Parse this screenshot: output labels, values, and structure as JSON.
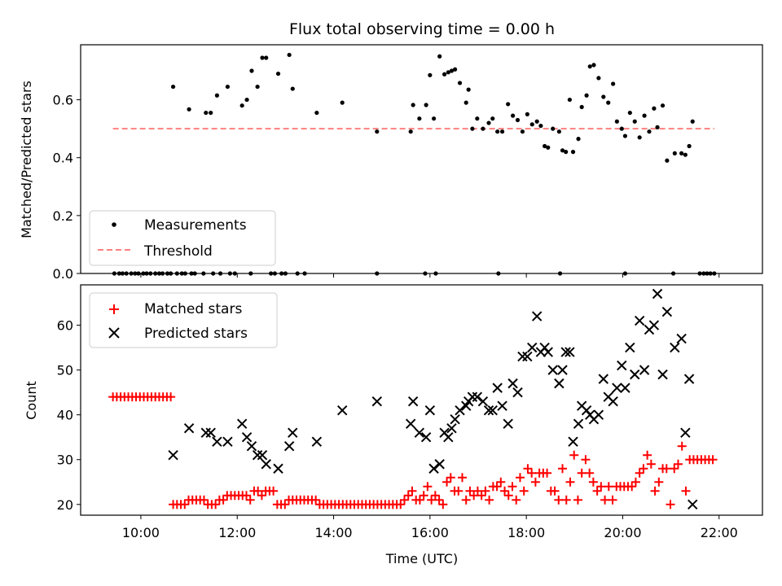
{
  "chart_data": [
    {
      "type": "scatter",
      "title": "Flux total observing time = 0.00 h",
      "xlabel": "",
      "ylabel": "Matched/Predicted stars",
      "xlim": [
        8.75,
        22.9
      ],
      "ylim": [
        0,
        0.79
      ],
      "yticks": [
        "0.0",
        "0.2",
        "0.4",
        "0.6"
      ],
      "ytick_values": [
        0.0,
        0.2,
        0.4,
        0.6
      ],
      "legend": {
        "placement": "lower-left",
        "entries": [
          "Measurements",
          "Threshold"
        ]
      },
      "colors": {
        "measurements": "#000000",
        "threshold": "#ff8080"
      },
      "threshold": {
        "name": "Threshold",
        "value": 0.5,
        "x_start": 9.42,
        "x_end": 21.9
      },
      "series": [
        {
          "name": "Measurements",
          "x": [
            10.67,
            11.0,
            11.35,
            11.45,
            11.58,
            11.8,
            12.1,
            12.2,
            12.3,
            12.42,
            12.52,
            12.6,
            12.85,
            13.08,
            13.15,
            13.65,
            14.18,
            14.9,
            15.6,
            15.65,
            15.78,
            15.92,
            16.0,
            16.08,
            16.2,
            16.3,
            16.38,
            16.45,
            16.52,
            16.62,
            16.75,
            16.8,
            16.88,
            16.98,
            17.1,
            17.22,
            17.3,
            17.4,
            17.5,
            17.62,
            17.72,
            17.82,
            17.92,
            18.02,
            18.12,
            18.22,
            18.3,
            18.38,
            18.45,
            18.55,
            18.68,
            18.75,
            18.82,
            18.9,
            18.97,
            19.08,
            19.15,
            19.25,
            19.32,
            19.4,
            19.5,
            19.6,
            19.7,
            19.8,
            19.88,
            19.98,
            20.05,
            20.15,
            20.25,
            20.35,
            20.45,
            20.55,
            20.65,
            20.72,
            20.83,
            20.92,
            21.08,
            21.22,
            21.3,
            21.38,
            21.45
          ],
          "y": [
            0.645,
            0.567,
            0.555,
            0.555,
            0.615,
            0.645,
            0.58,
            0.6,
            0.7,
            0.645,
            0.745,
            0.745,
            0.69,
            0.755,
            0.638,
            0.555,
            0.59,
            0.49,
            0.49,
            0.582,
            0.535,
            0.582,
            0.685,
            0.535,
            0.75,
            0.688,
            0.695,
            0.7,
            0.705,
            0.658,
            0.59,
            0.635,
            0.5,
            0.535,
            0.5,
            0.52,
            0.535,
            0.49,
            0.49,
            0.585,
            0.545,
            0.53,
            0.49,
            0.55,
            0.515,
            0.525,
            0.51,
            0.44,
            0.435,
            0.5,
            0.49,
            0.425,
            0.42,
            0.6,
            0.42,
            0.465,
            0.575,
            0.615,
            0.715,
            0.72,
            0.675,
            0.61,
            0.59,
            0.655,
            0.525,
            0.5,
            0.475,
            0.555,
            0.525,
            0.47,
            0.545,
            0.49,
            0.57,
            0.505,
            0.58,
            0.39,
            0.415,
            0.415,
            0.41,
            0.44,
            0.525
          ]
        },
        {
          "name": "Measurements (zero)",
          "x": [
            9.45,
            9.55,
            9.62,
            9.7,
            9.8,
            9.88,
            9.95,
            10.05,
            10.12,
            10.2,
            10.3,
            10.38,
            10.45,
            10.55,
            10.62,
            10.75,
            10.85,
            10.92,
            11.05,
            11.12,
            11.3,
            11.5,
            11.65,
            11.85,
            11.95,
            12.28,
            12.7,
            12.78,
            12.92,
            13.0,
            13.25,
            13.4,
            14.9,
            15.9,
            16.12,
            17.42,
            18.7,
            20.05,
            21.05,
            21.6,
            21.68,
            21.75,
            21.82,
            21.9
          ],
          "y": [
            0,
            0,
            0,
            0,
            0,
            0,
            0,
            0,
            0,
            0,
            0,
            0,
            0,
            0,
            0,
            0,
            0,
            0,
            0,
            0,
            0,
            0,
            0,
            0,
            0,
            0,
            0,
            0,
            0,
            0,
            0,
            0,
            0,
            0,
            0,
            0,
            0,
            0,
            0,
            0,
            0,
            0,
            0,
            0
          ]
        }
      ]
    },
    {
      "type": "scatter",
      "title": "",
      "xlabel": "Time (UTC)",
      "ylabel": "Count",
      "xlim": [
        8.75,
        22.9
      ],
      "ylim": [
        17.6,
        69
      ],
      "xticks": [
        "10:00",
        "12:00",
        "14:00",
        "16:00",
        "18:00",
        "20:00",
        "22:00"
      ],
      "xtick_values": [
        10,
        12,
        14,
        16,
        18,
        20,
        22
      ],
      "yticks": [
        "20",
        "30",
        "40",
        "50",
        "60"
      ],
      "ytick_values": [
        20,
        30,
        40,
        50,
        60
      ],
      "legend": {
        "placement": "upper-left",
        "entries": [
          "Matched stars",
          "Predicted stars"
        ]
      },
      "colors": {
        "matched": "#ff0000",
        "predicted": "#000000"
      },
      "series": [
        {
          "name": "Matched stars",
          "x": [
            9.42,
            9.5,
            9.58,
            9.66,
            9.74,
            9.82,
            9.9,
            9.98,
            10.06,
            10.14,
            10.22,
            10.3,
            10.38,
            10.46,
            10.54,
            10.62,
            10.67,
            10.75,
            10.83,
            10.91,
            10.99,
            11.07,
            11.15,
            11.23,
            11.31,
            11.39,
            11.47,
            11.55,
            11.63,
            11.71,
            11.79,
            11.87,
            11.95,
            12.03,
            12.11,
            12.19,
            12.27,
            12.35,
            12.43,
            12.51,
            12.59,
            12.67,
            12.75,
            12.83,
            12.91,
            12.99,
            13.07,
            13.15,
            13.23,
            13.31,
            13.39,
            13.47,
            13.55,
            13.63,
            13.71,
            13.79,
            13.87,
            13.95,
            14.03,
            14.11,
            14.19,
            14.27,
            14.35,
            14.43,
            14.51,
            14.59,
            14.67,
            14.75,
            14.83,
            14.91,
            14.99,
            15.07,
            15.15,
            15.23,
            15.31,
            15.39,
            15.47,
            15.55,
            15.63,
            15.71,
            15.79,
            15.87,
            15.95,
            16.03,
            16.11,
            16.19,
            16.27,
            16.35,
            16.43,
            16.51,
            16.59,
            16.67,
            16.75,
            16.83,
            16.91,
            16.99,
            17.07,
            17.15,
            17.23,
            17.31,
            17.39,
            17.47,
            17.55,
            17.63,
            17.71,
            17.79,
            17.87,
            17.95,
            18.03,
            18.11,
            18.19,
            18.27,
            18.35,
            18.43,
            18.51,
            18.59,
            18.67,
            18.75,
            18.83,
            18.91,
            18.99,
            19.07,
            19.15,
            19.23,
            19.31,
            19.39,
            19.47,
            19.55,
            19.63,
            19.71,
            19.79,
            19.87,
            19.95,
            20.03,
            20.11,
            20.19,
            20.27,
            20.35,
            20.43,
            20.51,
            20.59,
            20.67,
            20.75,
            20.83,
            20.91,
            20.99,
            21.07,
            21.15,
            21.23,
            21.31,
            21.39,
            21.47,
            21.55,
            21.63,
            21.71,
            21.79,
            21.87
          ],
          "y": [
            44,
            44,
            44,
            44,
            44,
            44,
            44,
            44,
            44,
            44,
            44,
            44,
            44,
            44,
            44,
            44,
            20,
            20,
            20,
            20,
            21,
            21,
            21,
            21,
            21,
            20,
            20,
            20,
            21,
            21,
            22,
            22,
            22,
            22,
            22,
            22,
            21,
            23,
            23,
            22,
            23,
            23,
            23,
            20,
            20,
            20,
            21,
            21,
            21,
            21,
            21,
            21,
            21,
            21,
            20,
            20,
            20,
            20,
            20,
            20,
            20,
            20,
            20,
            20,
            20,
            20,
            20,
            20,
            20,
            20,
            20,
            20,
            20,
            20,
            20,
            20,
            21,
            22,
            23,
            21,
            21,
            22,
            24,
            21,
            22,
            21,
            20,
            25,
            26,
            23,
            23,
            26,
            21,
            23,
            22,
            23,
            22,
            23,
            21,
            24,
            24,
            25,
            23,
            22,
            24,
            21,
            26,
            23,
            28,
            27,
            25,
            27,
            27,
            27,
            23,
            23,
            21,
            28,
            21,
            25,
            31,
            21,
            27,
            30,
            27,
            25,
            23,
            24,
            21,
            24,
            21,
            24,
            24,
            24,
            24,
            24,
            25,
            27,
            28,
            31,
            29,
            23,
            25,
            28,
            28,
            20,
            28,
            29,
            33,
            23,
            30,
            30,
            30,
            30,
            30,
            30,
            30
          ]
        },
        {
          "name": "Predicted stars",
          "x": [
            10.67,
            11.0,
            11.35,
            11.45,
            11.58,
            11.8,
            12.1,
            12.2,
            12.3,
            12.42,
            12.52,
            12.6,
            12.85,
            13.08,
            13.15,
            13.65,
            14.18,
            14.9,
            15.6,
            15.65,
            15.78,
            15.92,
            16.0,
            16.08,
            16.2,
            16.3,
            16.38,
            16.45,
            16.52,
            16.62,
            16.75,
            16.8,
            16.88,
            16.98,
            17.1,
            17.22,
            17.3,
            17.4,
            17.5,
            17.62,
            17.72,
            17.82,
            17.92,
            18.02,
            18.12,
            18.22,
            18.3,
            18.38,
            18.45,
            18.55,
            18.68,
            18.75,
            18.82,
            18.9,
            18.97,
            19.08,
            19.15,
            19.25,
            19.32,
            19.4,
            19.5,
            19.6,
            19.7,
            19.8,
            19.88,
            19.98,
            20.05,
            20.15,
            20.25,
            20.35,
            20.45,
            20.55,
            20.65,
            20.72,
            20.83,
            20.92,
            21.08,
            21.22,
            21.3,
            21.38,
            21.45
          ],
          "y": [
            31,
            37,
            36,
            36,
            34,
            34,
            38,
            35,
            33,
            31,
            31,
            29,
            28,
            33,
            36,
            34,
            41,
            43,
            38,
            43,
            36,
            35,
            41,
            28,
            29,
            36,
            35,
            37,
            39,
            41,
            42,
            43,
            44,
            44,
            43,
            41,
            41,
            46,
            42,
            38,
            47,
            45,
            53,
            53,
            55,
            62,
            54,
            55,
            54,
            50,
            47,
            50,
            54,
            54,
            34,
            38,
            42,
            41,
            40,
            39,
            40,
            48,
            44,
            43,
            46,
            51,
            46,
            55,
            49,
            61,
            50,
            59,
            60,
            67,
            49,
            63,
            55,
            57,
            36,
            48,
            20
          ]
        }
      ]
    }
  ]
}
